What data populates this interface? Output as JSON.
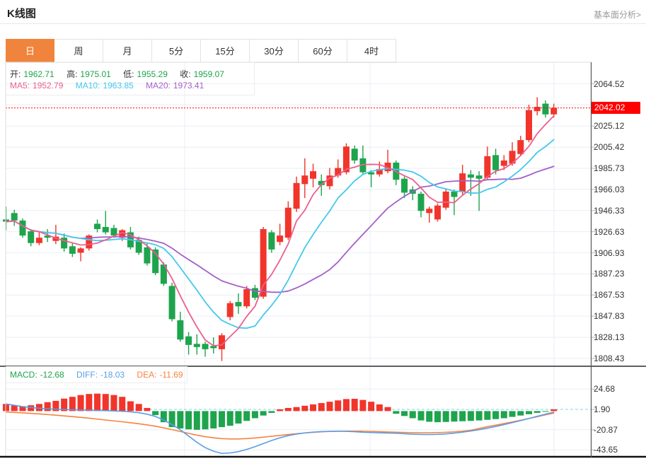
{
  "page": {
    "title": "K线图",
    "link": "基本面分析>"
  },
  "tabs": {
    "items": [
      "日",
      "周",
      "月",
      "5分",
      "15分",
      "30分",
      "60分",
      "4时"
    ],
    "active": "日"
  },
  "ohlc": {
    "open_label": "开:",
    "open": "1962.71",
    "high_label": "高:",
    "high": "1975.01",
    "low_label": "低:",
    "low": "1955.29",
    "close_label": "收:",
    "close": "1959.07"
  },
  "ma_legend": {
    "ma5_label": "MA5:",
    "ma5": "1952.79",
    "ma10_label": "MA10:",
    "ma10": "1963.85",
    "ma20_label": "MA20:",
    "ma20": "1973.41"
  },
  "macd_legend": {
    "macd_label": "MACD:",
    "macd": "-12.68",
    "diff_label": "DIFF:",
    "diff": "-18.03",
    "dea_label": "DEA:",
    "dea": "-11.69"
  },
  "price_tag": "2042.02",
  "colors": {
    "up": "#f1352b",
    "down": "#1ea44d",
    "ma5": "#ec5f8e",
    "ma10": "#45c8ec",
    "ma20": "#a55fc9",
    "diff": "#5b9ce6",
    "dea": "#f5833f",
    "tag_bg": "#fe0000",
    "current_line": "#ff0000",
    "zero_dash": "#7fd4e8",
    "accent": "#f0843c",
    "grid": "#e9eef5",
    "axis_border": "#555555",
    "text": "#333333",
    "link": "#999999"
  },
  "chart_data": {
    "type": "candlestick+macd",
    "title": "K线图 日线",
    "legend_position": "top-left",
    "grid": true,
    "current_price": 2042.02,
    "price_axis_labels": [
      2064.52,
      2025.12,
      2005.42,
      1985.73,
      1966.03,
      1946.33,
      1926.63,
      1906.93,
      1887.23,
      1867.53,
      1847.83,
      1828.13,
      1808.43
    ],
    "price_gridlines": [
      2064.52,
      2044.82,
      2025.12,
      2005.42,
      1985.73,
      1966.03,
      1946.33,
      1926.63,
      1906.93,
      1887.23,
      1867.53,
      1847.83,
      1828.13,
      1808.43
    ],
    "price_range": [
      1808.43,
      2064.52
    ],
    "ma_periods": [
      5,
      10,
      20
    ],
    "candles_ohlc": [
      [
        1938,
        1950,
        1928,
        1936
      ],
      [
        1944,
        1947,
        1932,
        1937
      ],
      [
        1937,
        1939,
        1921,
        1923
      ],
      [
        1927,
        1929,
        1913,
        1916
      ],
      [
        1916,
        1926,
        1914,
        1921
      ],
      [
        1923,
        1929,
        1917,
        1921
      ],
      [
        1918,
        1933,
        1915,
        1922
      ],
      [
        1921,
        1925,
        1908,
        1911
      ],
      [
        1913,
        1916,
        1903,
        1906
      ],
      [
        1907,
        1912,
        1899,
        1911
      ],
      [
        1911,
        1924,
        1909,
        1923
      ],
      [
        1934,
        1938,
        1926,
        1929
      ],
      [
        1931,
        1946,
        1924,
        1926
      ],
      [
        1930,
        1933,
        1921,
        1923
      ],
      [
        1921,
        1929,
        1918,
        1928
      ],
      [
        1926,
        1931,
        1910,
        1912
      ],
      [
        1919,
        1922,
        1905,
        1907
      ],
      [
        1912,
        1916,
        1895,
        1897
      ],
      [
        1910,
        1912,
        1886,
        1888
      ],
      [
        1896,
        1898,
        1876,
        1878
      ],
      [
        1876,
        1879,
        1843,
        1845
      ],
      [
        1844,
        1852,
        1824,
        1826
      ],
      [
        1829,
        1833,
        1812,
        1821
      ],
      [
        1822,
        1831,
        1812,
        1819
      ],
      [
        1822,
        1824,
        1810,
        1817
      ],
      [
        1820,
        1828,
        1813,
        1818
      ],
      [
        1817,
        1832,
        1806,
        1830
      ],
      [
        1847,
        1862,
        1844,
        1860
      ],
      [
        1861,
        1869,
        1850,
        1857
      ],
      [
        1857,
        1876,
        1855,
        1873
      ],
      [
        1874,
        1877,
        1863,
        1865
      ],
      [
        1866,
        1931,
        1864,
        1929
      ],
      [
        1926,
        1928,
        1907,
        1910
      ],
      [
        1917,
        1934,
        1914,
        1923
      ],
      [
        1921,
        1955,
        1919,
        1949
      ],
      [
        1948,
        1978,
        1945,
        1972
      ],
      [
        1971,
        1995,
        1958,
        1979
      ],
      [
        1976,
        1990,
        1968,
        1983
      ],
      [
        1974,
        1980,
        1960,
        1970
      ],
      [
        1969,
        1986,
        1966,
        1979
      ],
      [
        1979,
        1994,
        1977,
        1986
      ],
      [
        1982,
        2009,
        1980,
        2006
      ],
      [
        2004,
        2007,
        1990,
        1993
      ],
      [
        1995,
        2007,
        1980,
        1982
      ],
      [
        1982,
        1984,
        1968,
        1980
      ],
      [
        1980,
        1992,
        1978,
        1985
      ],
      [
        1983,
        2003,
        1981,
        1991
      ],
      [
        1991,
        1993,
        1970,
        1975
      ],
      [
        1976,
        1978,
        1958,
        1963
      ],
      [
        1966,
        1969,
        1956,
        1962
      ],
      [
        1962,
        1964,
        1940,
        1946
      ],
      [
        1944,
        1950,
        1935,
        1948
      ],
      [
        1938,
        1953,
        1936,
        1951
      ],
      [
        1949,
        1966,
        1947,
        1964
      ],
      [
        1964,
        1966,
        1942,
        1959
      ],
      [
        1964,
        1989,
        1960,
        1981
      ],
      [
        1980,
        1984,
        1960,
        1977
      ],
      [
        1979,
        1983,
        1946,
        1976
      ],
      [
        1977,
        2006,
        1975,
        1997
      ],
      [
        1998,
        2004,
        1980,
        1984
      ],
      [
        1988,
        1998,
        1984,
        1993
      ],
      [
        1990,
        2010,
        1988,
        2002
      ],
      [
        1999,
        2016,
        1997,
        2012
      ],
      [
        2012,
        2045,
        2010,
        2040
      ],
      [
        2039,
        2052,
        2035,
        2043
      ],
      [
        2046,
        2049,
        2033,
        2036
      ],
      [
        2036,
        2046,
        2033,
        2042
      ]
    ],
    "macd": {
      "axis_labels": [
        24.68,
        1.9,
        -20.87,
        -43.65
      ],
      "zero_line_value": 1.9,
      "bars": [
        8,
        6.5,
        5.5,
        6.5,
        8,
        10,
        11.5,
        14,
        16,
        18,
        19.2,
        19.6,
        19.2,
        18,
        16,
        11,
        8,
        3.5,
        -4.5,
        -12.5,
        -18,
        -19.5,
        -20.5,
        -21,
        -20.5,
        -19.5,
        -18,
        -16.5,
        -14,
        -11,
        -8,
        -5,
        -2,
        2,
        3.5,
        4.5,
        6,
        7.5,
        9,
        10.5,
        12,
        13.5,
        13.8,
        12.5,
        10.5,
        7.5,
        4.5,
        -3,
        -5.5,
        -8,
        -10.5,
        -12,
        -12.5,
        -12.2,
        -11.8,
        -11.4,
        -11,
        -10.5,
        -9.8,
        -9,
        -8,
        -6.5,
        -5,
        -3.5,
        -2,
        -0.8,
        2
      ],
      "diff": [
        8,
        6.5,
        5,
        4,
        3.2,
        2.6,
        2.2,
        1.8,
        1.5,
        1.2,
        1,
        0.8,
        0.5,
        0.2,
        -0.2,
        -0.8,
        -1.8,
        -3.5,
        -6,
        -10,
        -15,
        -21,
        -28,
        -35,
        -41,
        -45,
        -47.5,
        -47,
        -45.5,
        -43,
        -40,
        -36.5,
        -33,
        -30,
        -27.5,
        -25.8,
        -24.5,
        -23.6,
        -23,
        -22.7,
        -22.6,
        -22.8,
        -23.2,
        -23.8,
        -24.1,
        -24.4,
        -24.6,
        -24.8,
        -25.4,
        -25.9,
        -26.2,
        -26.3,
        -26.1,
        -25.6,
        -24.8,
        -23.7,
        -22.4,
        -20.9,
        -19.2,
        -17.3,
        -15.2,
        -13,
        -10.7,
        -8.3,
        -5.9,
        -3.5,
        -1.2
      ],
      "dea": [
        -1,
        -1.5,
        -2,
        -2.6,
        -3.2,
        -3.9,
        -4.6,
        -5.4,
        -6.2,
        -7.1,
        -8,
        -9,
        -10,
        -11,
        -12,
        -13,
        -14.2,
        -15.5,
        -17,
        -18.8,
        -20.8,
        -22.9,
        -25,
        -27,
        -28.7,
        -30,
        -30.9,
        -31.3,
        -31.3,
        -30.9,
        -30.2,
        -29.3,
        -28.3,
        -27.3,
        -26.3,
        -25.4,
        -24.6,
        -23.9,
        -23.3,
        -22.9,
        -22.6,
        -22.5,
        -22.5,
        -22.6,
        -22.8,
        -23.1,
        -23.4,
        -23.7,
        -24,
        -24.2,
        -24.3,
        -24.3,
        -24.1,
        -23.8,
        -23.3,
        -22.6,
        -21.5,
        -19.6,
        -17.5,
        -15.8,
        -14,
        -12.2,
        -10.3,
        -8.3,
        -6.3,
        -4.2,
        -2.2
      ]
    }
  }
}
